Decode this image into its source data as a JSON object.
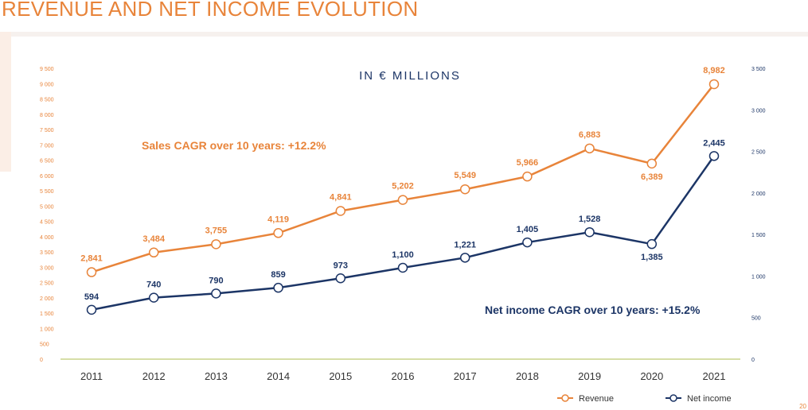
{
  "page": {
    "title": "REVENUE AND NET INCOME EVOLUTION",
    "corner_mark": "20"
  },
  "chart_data": {
    "type": "line",
    "title": "",
    "subtitle": "IN € MILLIONS",
    "categories": [
      "2011",
      "2012",
      "2013",
      "2014",
      "2015",
      "2016",
      "2017",
      "2018",
      "2019",
      "2020",
      "2021"
    ],
    "series": [
      {
        "name": "Revenue",
        "axis": "left",
        "color": "#e8843a",
        "values": [
          2841,
          3484,
          3755,
          4119,
          4841,
          5202,
          5549,
          5966,
          6883,
          6389,
          8982
        ],
        "labels": [
          "2,841",
          "3,484",
          "3,755",
          "4,119",
          "4,841",
          "5,202",
          "5,549",
          "5,966",
          "6,883",
          "6,389",
          "8,982"
        ]
      },
      {
        "name": "Net income",
        "axis": "right",
        "color": "#1c3566",
        "values": [
          594,
          740,
          790,
          859,
          973,
          1100,
          1221,
          1405,
          1528,
          1385,
          2445
        ],
        "labels": [
          "594",
          "740",
          "790",
          "859",
          "973",
          "1,100",
          "1,221",
          "1,405",
          "1,528",
          "1,385",
          "2,445"
        ]
      }
    ],
    "left_axis": {
      "ylim": [
        0,
        9500
      ],
      "ticks": [
        "0",
        "500",
        "1 000",
        "1 500",
        "2 000",
        "2 500",
        "3 000",
        "3 500",
        "4 000",
        "4 500",
        "5 000",
        "5 500",
        "6 000",
        "6 500",
        "7 000",
        "7 500",
        "8 000",
        "8 500",
        "9 000",
        "9 500"
      ],
      "color": "#e8843a"
    },
    "right_axis": {
      "ylim": [
        0,
        3500
      ],
      "ticks": [
        "0",
        "500",
        "1 000",
        "1 500",
        "2 000",
        "2 500",
        "3 000",
        "3 500"
      ],
      "color": "#1c3566"
    },
    "annotations": [
      {
        "text": "Sales CAGR over 10 years: +12.2%",
        "color": "#e8843a"
      },
      {
        "text": "Net income CAGR over 10 years: +15.2%",
        "color": "#1c3566"
      }
    ],
    "legend": {
      "position": "bottom-right",
      "items": [
        "Revenue",
        "Net income"
      ]
    },
    "grid": false
  }
}
